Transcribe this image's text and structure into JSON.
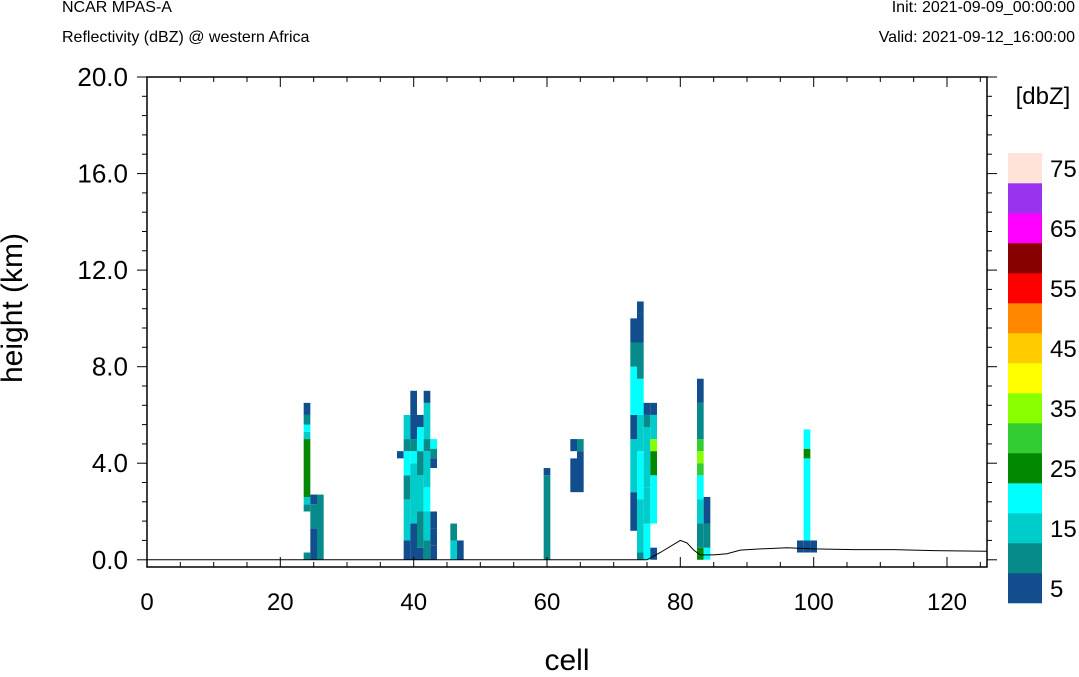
{
  "header": {
    "left_title": "NCAR MPAS-A",
    "left_subtitle": "Reflectivity (dBZ) @ western Africa",
    "right_init": "Init: 2021-09-09_00:00:00",
    "right_valid": "Valid: 2021-09-12_16:00:00"
  },
  "chart_data": {
    "type": "heatmap",
    "title": "Reflectivity (dBZ) @ western Africa",
    "xlabel": "cell",
    "ylabel": "height (km)",
    "xlim": [
      0,
      126
    ],
    "ylim": [
      -0.3,
      20.0
    ],
    "x_ticks": [
      0,
      20,
      40,
      60,
      80,
      100,
      120
    ],
    "x_tick_labels": [
      "0",
      "20",
      "40",
      "60",
      "80",
      "100",
      "120"
    ],
    "y_ticks": [
      0,
      4,
      8,
      12,
      16,
      20
    ],
    "y_tick_labels": [
      "0.0",
      "4.0",
      "8.0",
      "12.0",
      "16.0",
      "20.0"
    ],
    "grid": false,
    "colorbar": {
      "title": "[dbZ]",
      "levels": [
        5,
        10,
        15,
        20,
        25,
        30,
        35,
        40,
        45,
        50,
        55,
        60,
        65,
        70,
        75,
        80
      ],
      "colors": [
        "#124e8e",
        "#078a8a",
        "#00cccc",
        "#00ffff",
        "#008800",
        "#33cc33",
        "#88ff00",
        "#ffff00",
        "#ffcc00",
        "#ff8800",
        "#ff0000",
        "#880000",
        "#ff00ff",
        "#9933ee",
        "#ffe2d8"
      ],
      "labels": [
        "5",
        "15",
        "25",
        "35",
        "45",
        "55",
        "65",
        "75"
      ]
    },
    "columns": [
      {
        "x": 24,
        "cells": [
          [
            0,
            0.3,
            1
          ],
          [
            2.0,
            2.3,
            1
          ],
          [
            2.3,
            2.6,
            2
          ],
          [
            2.6,
            5.0,
            4
          ],
          [
            5.0,
            5.3,
            2
          ],
          [
            5.3,
            5.6,
            3
          ],
          [
            5.6,
            6.0,
            1
          ],
          [
            6.0,
            6.5,
            0
          ]
        ]
      },
      {
        "x": 25,
        "cells": [
          [
            0,
            1.3,
            0
          ],
          [
            1.3,
            2.3,
            1
          ],
          [
            2.3,
            2.7,
            0
          ]
        ]
      },
      {
        "x": 26,
        "cells": [
          [
            0,
            2.7,
            1
          ]
        ]
      },
      {
        "x": 38,
        "cells": [
          [
            4.2,
            4.5,
            0
          ]
        ]
      },
      {
        "x": 39,
        "cells": [
          [
            0,
            0.8,
            0
          ],
          [
            0.8,
            2.5,
            2
          ],
          [
            2.5,
            3.5,
            1
          ],
          [
            3.5,
            4.5,
            3
          ],
          [
            4.5,
            5.0,
            1
          ],
          [
            5.0,
            6.0,
            2
          ]
        ]
      },
      {
        "x": 40,
        "cells": [
          [
            0,
            1.5,
            0
          ],
          [
            1.5,
            4.0,
            2
          ],
          [
            4.0,
            4.5,
            3
          ],
          [
            4.5,
            5.0,
            1
          ],
          [
            5.0,
            6.0,
            0
          ],
          [
            6.0,
            7.0,
            0
          ]
        ]
      },
      {
        "x": 41,
        "cells": [
          [
            0,
            0.5,
            0
          ],
          [
            0.5,
            2.0,
            1
          ],
          [
            2.0,
            3.5,
            2
          ],
          [
            3.5,
            4.5,
            1
          ],
          [
            4.5,
            5.5,
            3
          ],
          [
            5.5,
            6.0,
            0
          ]
        ]
      },
      {
        "x": 42,
        "cells": [
          [
            0,
            0.8,
            1
          ],
          [
            0.8,
            2.0,
            2
          ],
          [
            2.0,
            3.0,
            3
          ],
          [
            3.0,
            4.5,
            2
          ],
          [
            4.5,
            5.0,
            1
          ],
          [
            5.0,
            6.5,
            2
          ],
          [
            6.5,
            7.0,
            0
          ]
        ]
      },
      {
        "x": 43,
        "cells": [
          [
            0,
            0.6,
            0
          ],
          [
            0.6,
            1.3,
            0
          ],
          [
            1.3,
            2.0,
            0
          ],
          [
            3.8,
            4.2,
            0
          ],
          [
            4.2,
            4.6,
            1
          ],
          [
            4.6,
            5.0,
            3
          ]
        ]
      },
      {
        "x": 46,
        "cells": [
          [
            0,
            0.8,
            2
          ],
          [
            0.8,
            1.5,
            1
          ]
        ]
      },
      {
        "x": 47,
        "cells": [
          [
            0,
            0.8,
            0
          ]
        ]
      },
      {
        "x": 60,
        "cells": [
          [
            0,
            3.5,
            1
          ],
          [
            3.5,
            3.8,
            0
          ]
        ]
      },
      {
        "x": 64,
        "cells": [
          [
            2.8,
            4.2,
            0
          ],
          [
            4.5,
            5.0,
            0
          ]
        ]
      },
      {
        "x": 65,
        "cells": [
          [
            2.8,
            4.5,
            0
          ],
          [
            4.5,
            5.0,
            1
          ]
        ]
      },
      {
        "x": 73,
        "cells": [
          [
            1.2,
            2.8,
            0
          ],
          [
            2.8,
            5.0,
            2
          ],
          [
            5.0,
            6.0,
            0
          ],
          [
            6.0,
            8.0,
            3
          ],
          [
            8.0,
            9.0,
            1
          ],
          [
            9.0,
            10.0,
            0
          ]
        ]
      },
      {
        "x": 74,
        "cells": [
          [
            0,
            0.3,
            1
          ],
          [
            0.3,
            2.5,
            2
          ],
          [
            2.5,
            4.5,
            3
          ],
          [
            4.5,
            6.0,
            2
          ],
          [
            6.0,
            7.5,
            3
          ],
          [
            7.5,
            9.0,
            1
          ],
          [
            9.0,
            10.2,
            0
          ],
          [
            10.2,
            10.7,
            0
          ]
        ]
      },
      {
        "x": 75,
        "cells": [
          [
            0,
            1.5,
            3
          ],
          [
            1.5,
            3.0,
            2
          ],
          [
            3.0,
            5.5,
            2
          ],
          [
            5.5,
            6.0,
            1
          ],
          [
            6.0,
            6.5,
            0
          ]
        ]
      },
      {
        "x": 76,
        "cells": [
          [
            0,
            0.5,
            0
          ],
          [
            1.5,
            3.5,
            3
          ],
          [
            3.5,
            4.5,
            4
          ],
          [
            4.5,
            5.0,
            6
          ],
          [
            5.0,
            6.0,
            2
          ],
          [
            6.0,
            6.5,
            0
          ]
        ]
      },
      {
        "x": 83,
        "cells": [
          [
            0,
            0.5,
            4
          ],
          [
            0.5,
            1.5,
            1
          ],
          [
            1.5,
            2.5,
            2
          ],
          [
            2.5,
            3.5,
            3
          ],
          [
            3.5,
            4.0,
            5
          ],
          [
            4.0,
            4.5,
            6
          ],
          [
            4.5,
            5.0,
            5
          ],
          [
            5.0,
            6.5,
            1
          ],
          [
            6.5,
            7.5,
            0
          ]
        ]
      },
      {
        "x": 84,
        "cells": [
          [
            0,
            0.5,
            3
          ],
          [
            0.5,
            1.5,
            1
          ],
          [
            1.5,
            2.6,
            0
          ]
        ]
      },
      {
        "x": 98,
        "cells": [
          [
            0.3,
            0.8,
            0
          ]
        ]
      },
      {
        "x": 99,
        "cells": [
          [
            0.3,
            0.8,
            0
          ],
          [
            0.8,
            4.2,
            3
          ],
          [
            4.2,
            4.6,
            4
          ],
          [
            4.6,
            5.4,
            3
          ]
        ]
      },
      {
        "x": 100,
        "cells": [
          [
            0.3,
            0.8,
            0
          ]
        ]
      }
    ],
    "terrain": [
      [
        0,
        0
      ],
      [
        75,
        0
      ],
      [
        77,
        0.3
      ],
      [
        80,
        0.8
      ],
      [
        81,
        0.7
      ],
      [
        82,
        0.4
      ],
      [
        83,
        0.2
      ],
      [
        85,
        0.2
      ],
      [
        87,
        0.25
      ],
      [
        89,
        0.4
      ],
      [
        92,
        0.45
      ],
      [
        96,
        0.5
      ],
      [
        100,
        0.45
      ],
      [
        106,
        0.42
      ],
      [
        112,
        0.42
      ],
      [
        118,
        0.38
      ],
      [
        126,
        0.35
      ]
    ]
  }
}
